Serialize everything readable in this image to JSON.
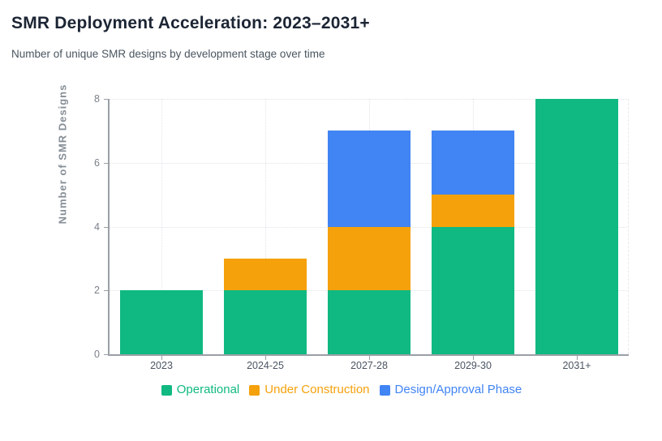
{
  "header": {
    "title": "SMR Deployment Acceleration: 2023–2031+",
    "subtitle": "Number of unique SMR designs by development stage over time"
  },
  "chart_data": {
    "type": "bar",
    "stacked": true,
    "title": "SMR Deployment Acceleration: 2023–2031+",
    "subtitle": "Number of unique SMR designs by development stage over time",
    "categories": [
      "2023",
      "2024-25",
      "2027-28",
      "2029-30",
      "2031+"
    ],
    "series": [
      {
        "name": "Operational",
        "color": "#10b981",
        "values": [
          2,
          2,
          2,
          4,
          8
        ]
      },
      {
        "name": "Under Construction",
        "color": "#f5a10b",
        "values": [
          0,
          1,
          2,
          1,
          0
        ]
      },
      {
        "name": "Design/Approval Phase",
        "color": "#4184f4",
        "values": [
          0,
          0,
          3,
          2,
          0
        ]
      }
    ],
    "totals": [
      2,
      3,
      7,
      7,
      8
    ],
    "xlabel": "",
    "ylabel": "Number of SMR Designs",
    "yticks": [
      0,
      2,
      4,
      6,
      8
    ],
    "ylim": [
      0,
      8
    ],
    "grid": true,
    "gridline_style": "dotted",
    "legend_position": "bottom",
    "axis_color": "#9aa0a6",
    "background_color": "#ffffff"
  }
}
